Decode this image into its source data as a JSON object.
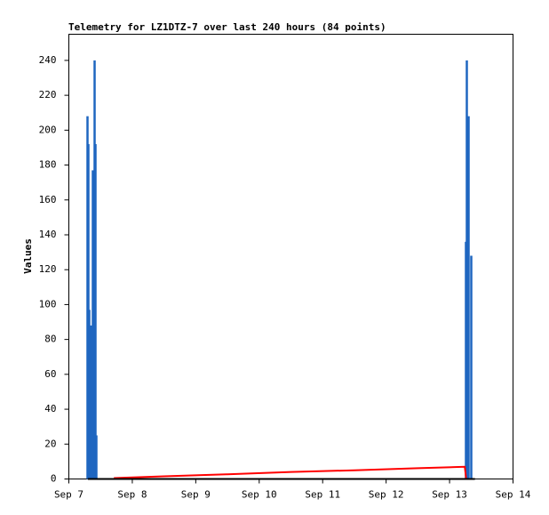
{
  "chart_data": {
    "type": "bar",
    "title": "Telemetry for LZ1DTZ-7 over last 240 hours (84 points)",
    "y_label": "Values",
    "xlim": [
      0,
      7
    ],
    "xticks": [
      {
        "value": 0,
        "label": "Sep 7"
      },
      {
        "value": 1,
        "label": "Sep 8"
      },
      {
        "value": 2,
        "label": "Sep 9"
      },
      {
        "value": 3,
        "label": "Sep 10"
      },
      {
        "value": 4,
        "label": "Sep 11"
      },
      {
        "value": 5,
        "label": "Sep 12"
      },
      {
        "value": 6,
        "label": "Sep 13"
      },
      {
        "value": 7,
        "label": "Sep 14"
      }
    ],
    "ylim": [
      0,
      255
    ],
    "yticks": [
      0,
      20,
      40,
      60,
      80,
      100,
      120,
      140,
      160,
      180,
      200,
      220,
      240
    ],
    "series": [
      {
        "type": "bar",
        "color": "#1f66c0",
        "x": [
          0.294,
          0.308,
          0.322,
          0.35,
          0.378,
          0.406,
          0.42,
          0.434,
          6.258,
          6.272,
          6.3,
          6.342
        ],
        "values": [
          208,
          192,
          97,
          88,
          177,
          240,
          192,
          25,
          136,
          240,
          208,
          128
        ]
      },
      {
        "type": "line",
        "color": "#ff0000",
        "x": [
          0.71,
          1.5,
          2.5,
          3.5,
          4.5,
          5.5,
          6.24,
          6.26
        ],
        "values": [
          0.5,
          1.5,
          2.7,
          4,
          5,
          6.2,
          7,
          0.5
        ]
      },
      {
        "type": "line",
        "color": "#000000",
        "x": [
          0.3,
          6.4
        ],
        "values": [
          0,
          0
        ]
      }
    ]
  }
}
